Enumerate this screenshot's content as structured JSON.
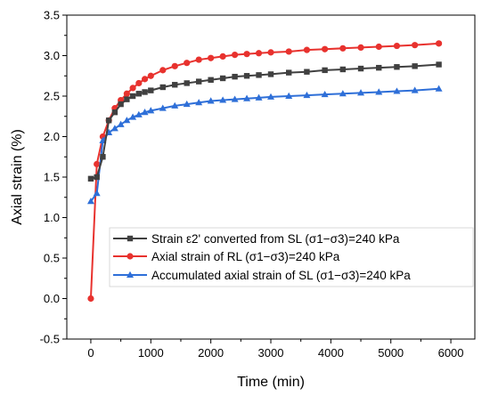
{
  "chart_data": {
    "type": "line",
    "xlabel": "Time (min)",
    "ylabel": "Axial strain (%)",
    "xlim": [
      -400,
      6400
    ],
    "ylim": [
      -0.5,
      3.5
    ],
    "x_ticks": [
      0,
      1000,
      2000,
      3000,
      4000,
      5000,
      6000
    ],
    "y_ticks": [
      -0.5,
      0.0,
      0.5,
      1.0,
      1.5,
      2.0,
      2.5,
      3.0,
      3.5
    ],
    "x_tick_labels": [
      "0",
      "1000",
      "2000",
      "3000",
      "4000",
      "5000",
      "6000"
    ],
    "y_tick_labels": [
      "-0.5",
      "0.0",
      "0.5",
      "1.0",
      "1.5",
      "2.0",
      "2.5",
      "3.0",
      "3.5"
    ],
    "legend_position": "center-right",
    "grid": false,
    "series": [
      {
        "name": "Strain ε2' converted from SL (σ1−σ3)=240 kPa",
        "color": "#404040",
        "marker": "square",
        "x": [
          0,
          100,
          200,
          300,
          400,
          500,
          600,
          700,
          800,
          900,
          1000,
          1200,
          1400,
          1600,
          1800,
          2000,
          2200,
          2400,
          2600,
          2800,
          3000,
          3300,
          3600,
          3900,
          4200,
          4500,
          4800,
          5100,
          5400,
          5800
        ],
        "y": [
          1.48,
          1.5,
          1.75,
          2.2,
          2.3,
          2.4,
          2.46,
          2.5,
          2.53,
          2.55,
          2.57,
          2.61,
          2.64,
          2.66,
          2.68,
          2.7,
          2.72,
          2.74,
          2.75,
          2.76,
          2.77,
          2.79,
          2.8,
          2.82,
          2.83,
          2.84,
          2.85,
          2.86,
          2.87,
          2.89
        ]
      },
      {
        "name": "Axial strain of RL (σ1−σ3)=240 kPa",
        "color": "#e8322e",
        "marker": "circle",
        "x": [
          0,
          100,
          200,
          300,
          400,
          500,
          600,
          700,
          800,
          900,
          1000,
          1200,
          1400,
          1600,
          1800,
          2000,
          2200,
          2400,
          2600,
          2800,
          3000,
          3300,
          3600,
          3900,
          4200,
          4500,
          4800,
          5100,
          5400,
          5800
        ],
        "y": [
          0.0,
          1.66,
          2.0,
          2.2,
          2.35,
          2.45,
          2.53,
          2.6,
          2.66,
          2.71,
          2.75,
          2.82,
          2.87,
          2.91,
          2.95,
          2.97,
          2.99,
          3.01,
          3.02,
          3.03,
          3.04,
          3.05,
          3.07,
          3.08,
          3.09,
          3.1,
          3.11,
          3.12,
          3.13,
          3.15
        ]
      },
      {
        "name": "Accumulated axial strain of SL (σ1−σ3)=240 kPa",
        "color": "#2e6fd8",
        "marker": "triangle",
        "x": [
          0,
          100,
          200,
          300,
          400,
          500,
          600,
          700,
          800,
          900,
          1000,
          1200,
          1400,
          1600,
          1800,
          2000,
          2200,
          2400,
          2600,
          2800,
          3000,
          3300,
          3600,
          3900,
          4200,
          4500,
          4800,
          5100,
          5400,
          5800
        ],
        "y": [
          1.2,
          1.3,
          1.95,
          2.05,
          2.1,
          2.15,
          2.2,
          2.24,
          2.27,
          2.3,
          2.32,
          2.35,
          2.38,
          2.4,
          2.42,
          2.44,
          2.45,
          2.46,
          2.47,
          2.48,
          2.49,
          2.5,
          2.51,
          2.52,
          2.53,
          2.54,
          2.55,
          2.56,
          2.57,
          2.59
        ]
      }
    ]
  }
}
